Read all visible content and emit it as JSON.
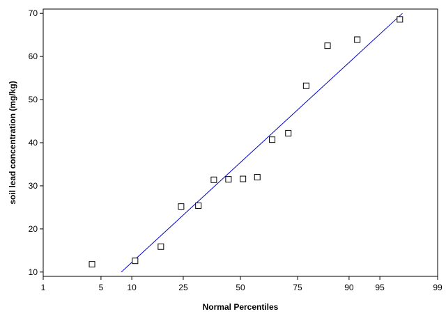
{
  "chart_data": {
    "type": "scatter",
    "title": "",
    "xlabel": "Normal Percentiles",
    "ylabel": "soil lead concentration (mg/kg)",
    "x_scale": "normal-probability",
    "x_tick_labels": [
      "1",
      "5",
      "10",
      "25",
      "50",
      "75",
      "90",
      "95",
      "99"
    ],
    "xlim": [
      1,
      99
    ],
    "ylim": [
      9,
      71
    ],
    "y_ticks": [
      10,
      20,
      30,
      40,
      50,
      60,
      70
    ],
    "grid": false,
    "legend": "none",
    "series": [
      {
        "marker": "open-square",
        "points": [
          {
            "x": 4.0,
            "y": 11.8
          },
          {
            "x": 10.7,
            "y": 12.6
          },
          {
            "x": 17.4,
            "y": 15.9
          },
          {
            "x": 24.2,
            "y": 25.2
          },
          {
            "x": 31.0,
            "y": 25.4
          },
          {
            "x": 37.7,
            "y": 31.4
          },
          {
            "x": 44.4,
            "y": 31.5
          },
          {
            "x": 51.2,
            "y": 31.6
          },
          {
            "x": 57.9,
            "y": 32.0
          },
          {
            "x": 64.6,
            "y": 40.7
          },
          {
            "x": 71.4,
            "y": 42.2
          },
          {
            "x": 78.1,
            "y": 53.2
          },
          {
            "x": 84.8,
            "y": 62.5
          },
          {
            "x": 91.6,
            "y": 63.9
          },
          {
            "x": 97.0,
            "y": 68.6
          }
        ]
      }
    ],
    "fit_line": {
      "color": "#0000cc",
      "points": [
        {
          "x": 8.0,
          "y": 10.0
        },
        {
          "x": 97.2,
          "y": 70.0
        }
      ]
    },
    "colors": {
      "axis": "#000000",
      "marker": "#000000",
      "fit_line": "#0000cc"
    }
  }
}
